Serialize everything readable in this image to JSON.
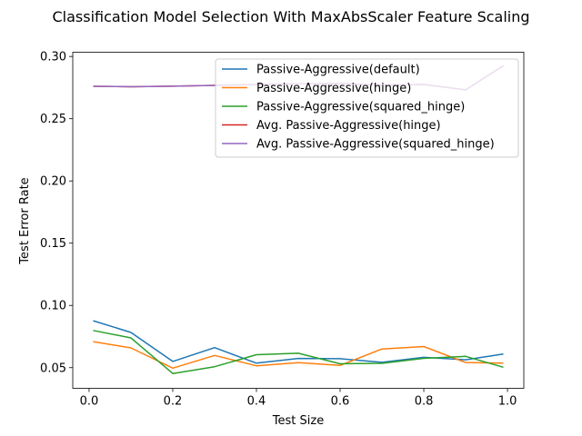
{
  "chart_data": {
    "type": "line",
    "title": "Classification Model Selection With MaxAbsScaler Feature Scaling",
    "xlabel": "Test Size",
    "ylabel": "Test Error Rate",
    "xlim": [
      -0.039,
      1.039
    ],
    "ylim": [
      0.0334,
      0.3034
    ],
    "xticks": [
      0.0,
      0.2,
      0.4,
      0.6,
      0.8,
      1.0
    ],
    "xtick_labels": [
      "0.0",
      "0.2",
      "0.4",
      "0.6",
      "0.8",
      "1.0"
    ],
    "yticks": [
      0.05,
      0.1,
      0.15,
      0.2,
      0.25,
      0.3
    ],
    "ytick_labels": [
      "0.05",
      "0.10",
      "0.15",
      "0.20",
      "0.25",
      "0.30"
    ],
    "grid": false,
    "legend_position": "top-right",
    "x": [
      0.01,
      0.1,
      0.2,
      0.3,
      0.4,
      0.5,
      0.6,
      0.7,
      0.8,
      0.9,
      0.99
    ],
    "series": [
      {
        "name": "Passive-Aggressive(default)",
        "color": "#1f77b4",
        "values": [
          0.0877,
          0.0783,
          0.055,
          0.0661,
          0.0536,
          0.0574,
          0.0572,
          0.0543,
          0.0583,
          0.0563,
          0.0609
        ]
      },
      {
        "name": "Passive-Aggressive(hinge)",
        "color": "#ff7f0e",
        "values": [
          0.0709,
          0.0659,
          0.0496,
          0.0598,
          0.0515,
          0.054,
          0.0518,
          0.065,
          0.067,
          0.0541,
          0.0537
        ]
      },
      {
        "name": "Passive-Aggressive(squared_hinge)",
        "color": "#2ca02c",
        "values": [
          0.0799,
          0.0739,
          0.0453,
          0.0508,
          0.0604,
          0.0616,
          0.0531,
          0.0535,
          0.0575,
          0.0591,
          0.0503
        ]
      },
      {
        "name": "Avg. Passive-Aggressive(hinge)",
        "color": "#d62728",
        "values": [
          0.276,
          0.2757,
          0.2761,
          0.2768,
          0.2775,
          0.278,
          0.2783,
          0.277,
          0.2775,
          0.2732,
          0.2925
        ]
      },
      {
        "name": "Avg. Passive-Aggressive(squared_hinge)",
        "color": "#9467bd",
        "values": [
          0.276,
          0.2757,
          0.2761,
          0.2768,
          0.2775,
          0.278,
          0.2783,
          0.277,
          0.2775,
          0.2732,
          0.2925
        ]
      }
    ]
  }
}
